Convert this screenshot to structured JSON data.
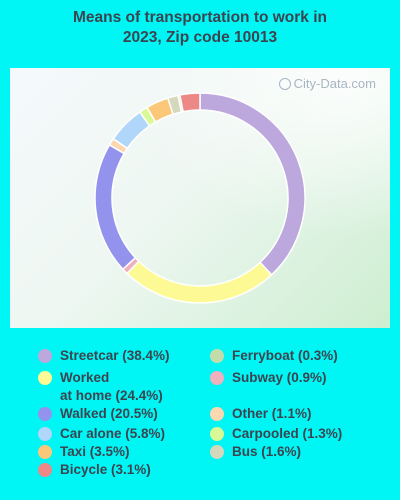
{
  "chart_data": {
    "type": "pie",
    "title": "Means of transportation to work in\n2023, Zip code 10013",
    "watermark": "City-Data.com",
    "slices": [
      {
        "label": "Streetcar",
        "legend": "Streetcar (38.4%)",
        "value": 38.4,
        "color": "#bca8dc"
      },
      {
        "label": "Worked at home",
        "legend": "Worked\nat home (24.4%)",
        "value": 24.4,
        "color": "#fdfa96"
      },
      {
        "label": "Subway",
        "legend": "Subway (0.9%)",
        "value": 0.9,
        "color": "#f0b0bc"
      },
      {
        "label": "Walked",
        "legend": "Walked (20.5%)",
        "value": 20.5,
        "color": "#9393ee"
      },
      {
        "label": "Other",
        "legend": "Other (1.1%)",
        "value": 1.1,
        "color": "#fbd8b0"
      },
      {
        "label": "Car alone",
        "legend": "Car alone (5.8%)",
        "value": 5.8,
        "color": "#b0d6fa"
      },
      {
        "label": "Carpooled",
        "legend": "Carpooled (1.3%)",
        "value": 1.3,
        "color": "#d8f996"
      },
      {
        "label": "Taxi",
        "legend": "Taxi (3.5%)",
        "value": 3.5,
        "color": "#fbc87a"
      },
      {
        "label": "Bus",
        "legend": "Bus (1.6%)",
        "value": 1.6,
        "color": "#d6d8bc"
      },
      {
        "label": "Ferryboat",
        "legend": "Ferryboat (0.3%)",
        "value": 0.3,
        "color": "#c4dcaa"
      },
      {
        "label": "Bicycle",
        "legend": "Bicycle (3.1%)",
        "value": 3.1,
        "color": "#ec8886"
      }
    ],
    "legend_columns": [
      [
        "Streetcar",
        "Worked at home",
        "Walked",
        "Car alone",
        "Taxi",
        "Bicycle"
      ],
      [
        "Ferryboat",
        "Subway",
        "Other",
        "Carpooled",
        "Bus"
      ]
    ]
  }
}
